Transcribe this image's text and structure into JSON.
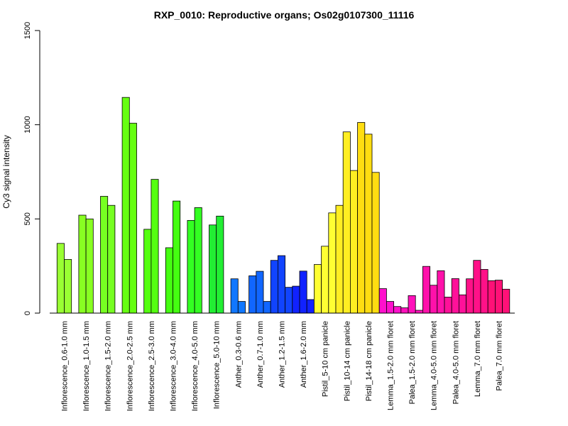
{
  "chart_data": {
    "type": "bar",
    "title": "RXP_0010: Reproductive organs; Os02g0107300_11116",
    "xlabel": "",
    "ylabel": "Cy3 signal intensity",
    "ylim": [
      0,
      1500
    ],
    "yticks": [
      0,
      500,
      1000,
      1500
    ],
    "grid": false,
    "groups": [
      {
        "label": "Inflorescence_0.6-1.0 mm",
        "color": "#99ff33",
        "values": [
          370,
          285
        ]
      },
      {
        "label": "Inflorescence_1.0-1.5 mm",
        "color": "#88ff22",
        "values": [
          520,
          500
        ]
      },
      {
        "label": "Inflorescence_1.5-2.0 mm",
        "color": "#77ff22",
        "values": [
          620,
          572
        ]
      },
      {
        "label": "Inflorescence_2.0-2.5 mm",
        "color": "#66ff11",
        "values": [
          1145,
          1008
        ]
      },
      {
        "label": "Inflorescence_2.5-3.0 mm",
        "color": "#55ff11",
        "values": [
          445,
          710
        ]
      },
      {
        "label": "Inflorescence_3.0-4.0 mm",
        "color": "#44ff11",
        "values": [
          347,
          595
        ]
      },
      {
        "label": "Inflorescence_4.0-5.0 mm",
        "color": "#33ff22",
        "values": [
          492,
          560
        ]
      },
      {
        "label": "Inflorescence_5.0-10 mm",
        "color": "#22ee33",
        "values": [
          468,
          515
        ]
      },
      {
        "label": "Anther_0.3-0.6 mm",
        "color": "#1177ff",
        "values": [
          182,
          62
        ]
      },
      {
        "label": "Anther_0.7-1.0 mm",
        "color": "#1166ff",
        "values": [
          198,
          222,
          62
        ]
      },
      {
        "label": "Anther_1.2-1.5 mm",
        "color": "#1144ff",
        "values": [
          280,
          305,
          137
        ]
      },
      {
        "label": "Anther_1.6-2.0 mm",
        "color": "#1122ff",
        "values": [
          143,
          223,
          72
        ]
      },
      {
        "label": "Pistil_5-10 cm panicle",
        "color": "#ffff33",
        "values": [
          258,
          355,
          532
        ]
      },
      {
        "label": "Pistil_10-14 cm panicle",
        "color": "#ffee22",
        "values": [
          572,
          962,
          757
        ]
      },
      {
        "label": "Pistil_14-18 cm panicle",
        "color": "#ffdd11",
        "values": [
          1012,
          950,
          747
        ]
      },
      {
        "label": "Lemma_1.5-2.0 mm floret",
        "color": "#ff11cc",
        "values": [
          130,
          62,
          35
        ]
      },
      {
        "label": "Palea_1.5-2.0 mm floret",
        "color": "#ff11bb",
        "values": [
          28,
          93,
          15
        ]
      },
      {
        "label": "Lemma_4.0-5.0 mm floret",
        "color": "#ff11aa",
        "values": [
          248,
          148,
          225
        ]
      },
      {
        "label": "Palea_4.0-5.0 mm floret",
        "color": "#ff1199",
        "values": [
          85,
          183,
          97
        ]
      },
      {
        "label": "Lemma_7.0 mm floret",
        "color": "#ff1188",
        "values": [
          182,
          280,
          232
        ]
      },
      {
        "label": "Palea_7.0 mm floret",
        "color": "#ff1177",
        "values": [
          172,
          175,
          127
        ]
      }
    ]
  }
}
